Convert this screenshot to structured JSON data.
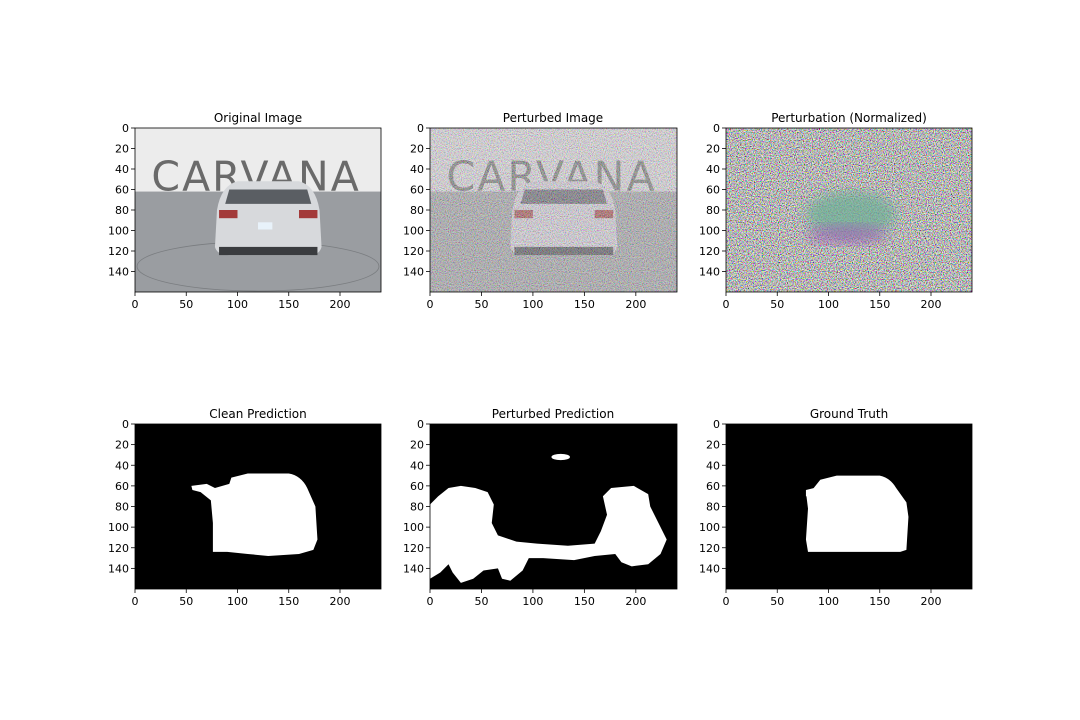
{
  "figure": {
    "panels": [
      {
        "title": "Original Image",
        "kind": "photo"
      },
      {
        "title": "Perturbed Image",
        "kind": "photo-noisy"
      },
      {
        "title": "Perturbation (Normalized)",
        "kind": "noise"
      },
      {
        "title": "Clean Prediction",
        "kind": "mask-clean"
      },
      {
        "title": "Perturbed Prediction",
        "kind": "mask-perturbed"
      },
      {
        "title": "Ground Truth",
        "kind": "mask-truth"
      }
    ],
    "x_ticks": [
      "0",
      "50",
      "100",
      "150",
      "200"
    ],
    "y_ticks": [
      "0",
      "20",
      "40",
      "60",
      "80",
      "100",
      "120",
      "140"
    ],
    "watermark_text": "CARVANA",
    "colors": {
      "mask_fg": "#ffffff",
      "mask_bg": "#000000",
      "floor": "#9a9da1",
      "backdrop": "#ececec"
    }
  }
}
